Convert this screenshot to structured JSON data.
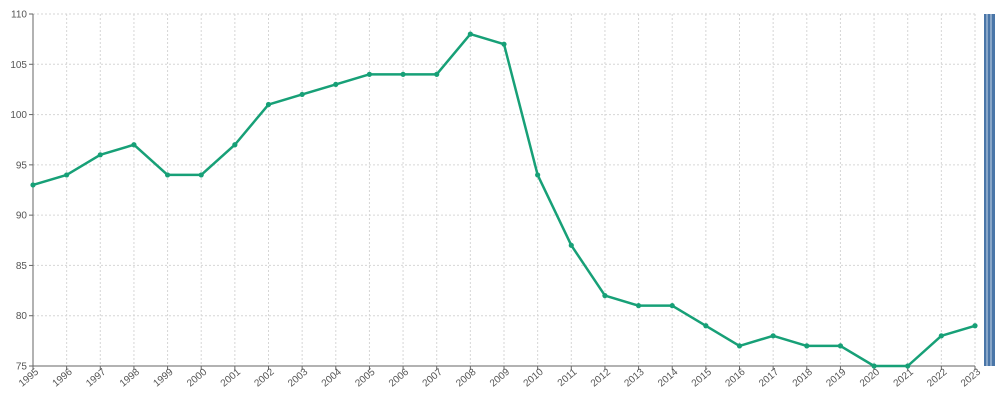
{
  "chart_data": {
    "type": "line",
    "title": "",
    "xlabel": "",
    "ylabel": "",
    "x": [
      "1995",
      "1996",
      "1997",
      "1998",
      "1999",
      "2000",
      "2001",
      "2002",
      "2003",
      "2004",
      "2005",
      "2006",
      "2007",
      "2008",
      "2009",
      "2010",
      "2011",
      "2012",
      "2013",
      "2014",
      "2015",
      "2016",
      "2017",
      "2018",
      "2019",
      "2020",
      "2021",
      "2022",
      "2023"
    ],
    "series": [
      {
        "values": [
          93,
          94,
          96,
          97,
          94,
          94,
          97,
          101,
          102,
          103,
          104,
          104,
          104,
          108,
          107,
          94,
          87,
          82,
          81,
          81,
          79,
          77,
          78,
          77,
          77,
          75,
          75,
          78,
          79
        ],
        "color": "#17a077"
      }
    ],
    "ylim": [
      75,
      110
    ],
    "yticks": [
      75,
      80,
      85,
      90,
      95,
      100,
      105,
      110
    ],
    "grid": true,
    "legend": "none"
  },
  "colors": {
    "line": "#17a077",
    "grid": "#d6d6d6",
    "axis": "#666666",
    "scrollbar": "#4a76a8"
  }
}
